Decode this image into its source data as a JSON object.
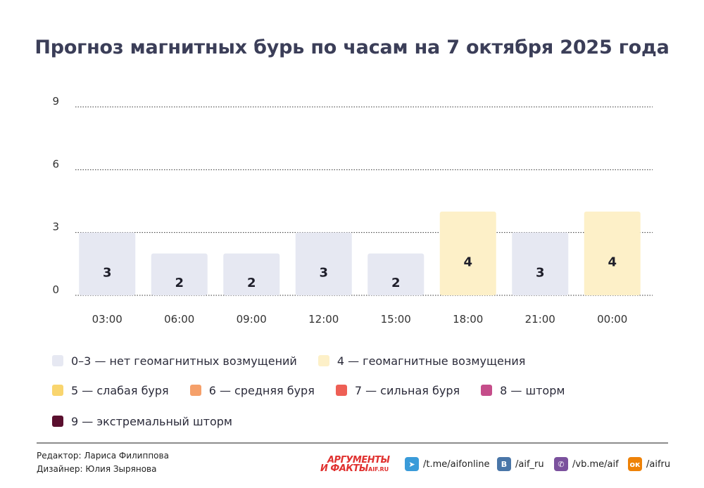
{
  "title": "Прогноз магнитных бурь по часам на 7 октября 2025 года",
  "chart_data": {
    "type": "bar",
    "categories": [
      "03:00",
      "06:00",
      "09:00",
      "12:00",
      "15:00",
      "18:00",
      "21:00",
      "00:00"
    ],
    "values": [
      3,
      2,
      2,
      3,
      2,
      4,
      3,
      4
    ],
    "ylim": [
      0,
      9
    ],
    "yticks": [
      0,
      3,
      6,
      9
    ],
    "grid": "dotted horizontal",
    "legend_position": "bottom",
    "level_colors": {
      "0-3": "#e6e8f2",
      "4": "#fdf0c8",
      "5": "#f9d56e",
      "6": "#f5a06a",
      "7": "#ee5f55",
      "8": "#c54d8a",
      "9": "#5a0f2e"
    }
  },
  "legend": [
    {
      "label": "0–3 — нет геомагнитных возмущений",
      "color": "#e6e8f2"
    },
    {
      "label": "4 — геомагнитные возмущения",
      "color": "#fdf0c8"
    },
    {
      "label": "5 — слабая буря",
      "color": "#f9d56e"
    },
    {
      "label": "6 — средняя буря",
      "color": "#f5a06a"
    },
    {
      "label": "7 — сильная буря",
      "color": "#ee5f55"
    },
    {
      "label": "8 — шторм",
      "color": "#c54d8a"
    },
    {
      "label": "9 — экстремальный шторм",
      "color": "#5a0f2e"
    }
  ],
  "footer": {
    "editor": "Редактор: Лариса Филиппова",
    "designer": "Дизайнер: Юлия Зырянова",
    "logo_top": "АРГУМЕНТЫ",
    "logo_bottom": "И ФАКТЫ",
    "logo_url": "AIF.RU",
    "social": [
      {
        "icon": "telegram-icon",
        "text": "/t.me/aifonline",
        "color": "#3a9bd9"
      },
      {
        "icon": "vk-icon",
        "text": "/aif_ru",
        "color": "#4a76a8"
      },
      {
        "icon": "viber-icon",
        "text": "/vb.me/aif",
        "color": "#7b519d"
      },
      {
        "icon": "odnoklassniki-icon",
        "text": "/aifru",
        "color": "#ee8208"
      }
    ]
  }
}
